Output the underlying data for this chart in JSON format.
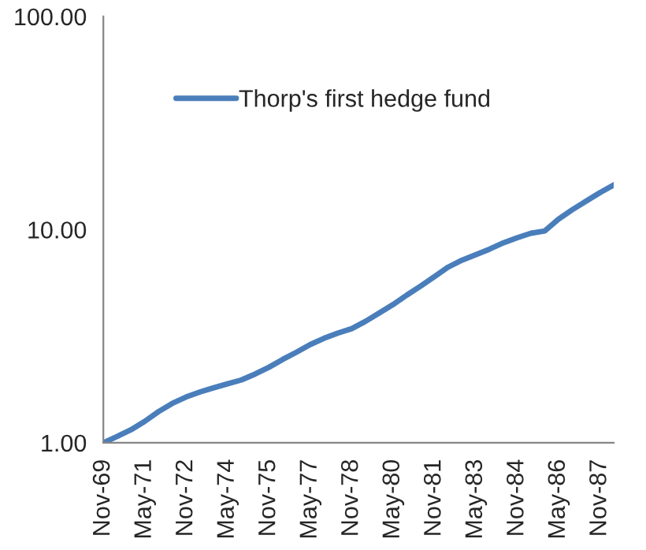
{
  "chart_data": {
    "type": "line",
    "categories": [
      "Nov-69",
      null,
      null,
      "May-71",
      null,
      null,
      "Nov-72",
      null,
      null,
      "May-74",
      null,
      null,
      "Nov-75",
      null,
      null,
      "May-77",
      null,
      null,
      "Nov-78",
      null,
      null,
      "May-80",
      null,
      null,
      "Nov-81",
      null,
      null,
      "May-83",
      null,
      null,
      "Nov-84",
      null,
      null,
      "May-86",
      null,
      null,
      "Nov-87",
      null
    ],
    "series": [
      {
        "name": "Thorp's first hedge fund",
        "color": "#4a7ebb",
        "values": [
          1.0,
          1.07,
          1.15,
          1.26,
          1.4,
          1.53,
          1.64,
          1.73,
          1.81,
          1.89,
          1.97,
          2.1,
          2.26,
          2.46,
          2.66,
          2.89,
          3.09,
          3.27,
          3.43,
          3.71,
          4.06,
          4.45,
          4.93,
          5.43,
          6.02,
          6.67,
          7.19,
          7.62,
          8.1,
          8.67,
          9.16,
          9.62,
          9.85,
          11.2,
          12.4,
          13.6,
          14.9,
          16.2
        ]
      }
    ],
    "log": true,
    "ylim": [
      1,
      100
    ],
    "yticks": [
      {
        "value": 1,
        "label": "1.00"
      },
      {
        "value": 10,
        "label": "10.00"
      },
      {
        "value": 100,
        "label": "100.00"
      }
    ],
    "grid": false,
    "legend": "top left",
    "marker": "none",
    "line_style": "solid"
  }
}
